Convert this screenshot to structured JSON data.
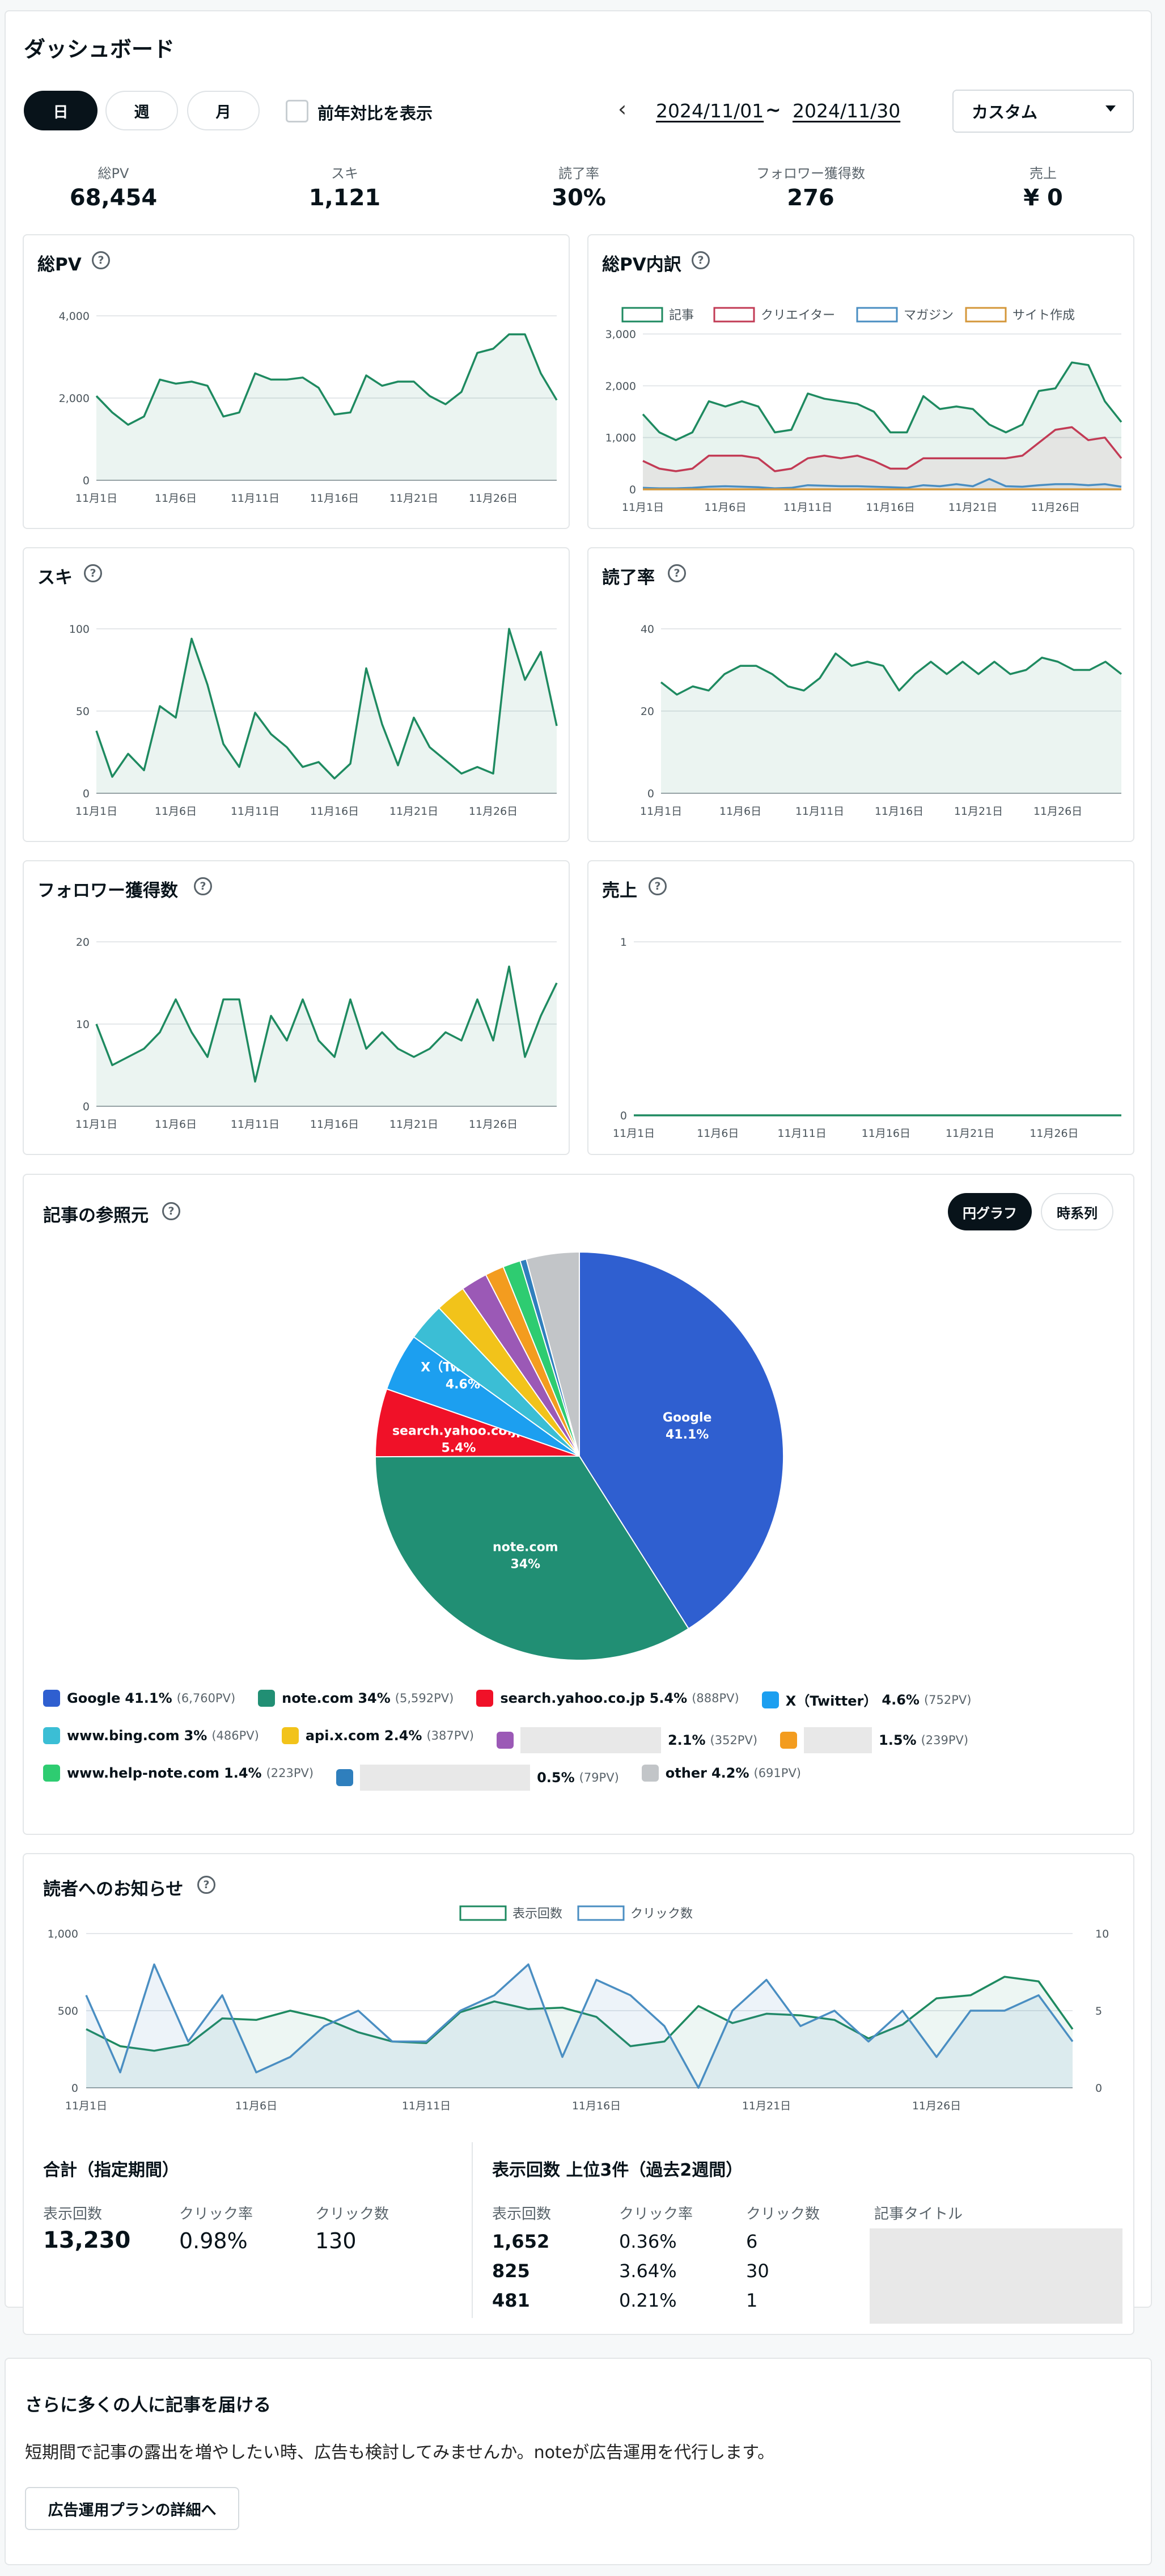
{
  "page": {
    "title": "ダッシュボード"
  },
  "controls": {
    "period_buttons": [
      "日",
      "週",
      "月"
    ],
    "yoy_label": "前年対比を表示",
    "prev_arrow": "‹",
    "date_from": "2024/11/01",
    "date_sep": "~",
    "date_to": "2024/11/30",
    "range_select": "カスタム"
  },
  "kpis": [
    {
      "label": "総PV",
      "value": "68,454"
    },
    {
      "label": "スキ",
      "value": "1,121"
    },
    {
      "label": "読了率",
      "value": "30%"
    },
    {
      "label": "フォロワー獲得数",
      "value": "276"
    },
    {
      "label": "売上",
      "value": "¥ 0"
    }
  ],
  "colors": {
    "green": "#1e8a60",
    "red": "#c23b55",
    "blue": "#4a8ec2",
    "orange": "#d4973a",
    "dark": "#08131a"
  },
  "chart_data": [
    {
      "type": "area",
      "title": "総PV",
      "x": [
        "11月1日",
        "11月2日",
        "11月3日",
        "11月4日",
        "11月5日",
        "11月6日",
        "11月7日",
        "11月8日",
        "11月9日",
        "11月10日",
        "11月11日",
        "11月12日",
        "11月13日",
        "11月14日",
        "11月15日",
        "11月16日",
        "11月17日",
        "11月18日",
        "11月19日",
        "11月20日",
        "11月21日",
        "11月22日",
        "11月23日",
        "11月24日",
        "11月25日",
        "11月26日",
        "11月27日",
        "11月28日",
        "11月29日",
        "11月30日"
      ],
      "xticks": [
        "11月1日",
        "11月6日",
        "11月11日",
        "11月16日",
        "11月21日",
        "11月26日"
      ],
      "yticks": [
        "0",
        "2,000",
        "4,000"
      ],
      "ylim": [
        0,
        4000
      ],
      "series": [
        {
          "values": [
            2050,
            1650,
            1350,
            1550,
            2450,
            2350,
            2400,
            2300,
            1550,
            1650,
            2600,
            2450,
            2450,
            2500,
            2250,
            1600,
            1650,
            2550,
            2300,
            2400,
            2400,
            2050,
            1850,
            2150,
            3100,
            3200,
            3550,
            3550,
            2600,
            1950
          ]
        }
      ]
    },
    {
      "type": "line",
      "title": "総PV内訳",
      "x": [
        "11月1日",
        "11月2日",
        "11月3日",
        "11月4日",
        "11月5日",
        "11月6日",
        "11月7日",
        "11月8日",
        "11月9日",
        "11月10日",
        "11月11日",
        "11月12日",
        "11月13日",
        "11月14日",
        "11月15日",
        "11月16日",
        "11月17日",
        "11月18日",
        "11月19日",
        "11月20日",
        "11月21日",
        "11月22日",
        "11月23日",
        "11月24日",
        "11月25日",
        "11月26日",
        "11月27日",
        "11月28日",
        "11月29日",
        "11月30日"
      ],
      "xticks": [
        "11月1日",
        "11月6日",
        "11月11日",
        "11月16日",
        "11月21日",
        "11月26日"
      ],
      "yticks": [
        "0",
        "1,000",
        "2,000",
        "3,000"
      ],
      "ylim": [
        0,
        3000
      ],
      "series": [
        {
          "name": "記事",
          "values": [
            1450,
            1100,
            950,
            1100,
            1700,
            1600,
            1700,
            1600,
            1100,
            1150,
            1850,
            1750,
            1700,
            1650,
            1500,
            1100,
            1100,
            1800,
            1550,
            1600,
            1550,
            1250,
            1100,
            1250,
            1900,
            1950,
            2450,
            2400,
            1700,
            1300
          ]
        },
        {
          "name": "クリエイター",
          "values": [
            550,
            400,
            350,
            400,
            650,
            650,
            650,
            600,
            350,
            400,
            600,
            650,
            600,
            650,
            550,
            400,
            400,
            600,
            600,
            600,
            600,
            600,
            600,
            650,
            900,
            1150,
            1200,
            950,
            1000,
            600
          ]
        },
        {
          "name": "マガジン",
          "values": [
            30,
            20,
            20,
            30,
            50,
            60,
            50,
            40,
            20,
            30,
            80,
            70,
            60,
            60,
            50,
            40,
            30,
            80,
            60,
            100,
            60,
            200,
            60,
            50,
            80,
            100,
            100,
            80,
            100,
            50
          ]
        },
        {
          "name": "サイト作成",
          "values": [
            0,
            0,
            0,
            0,
            0,
            0,
            0,
            0,
            0,
            0,
            0,
            0,
            0,
            0,
            0,
            0,
            0,
            0,
            0,
            0,
            0,
            0,
            0,
            0,
            0,
            0,
            0,
            0,
            0,
            0
          ]
        }
      ]
    },
    {
      "type": "area",
      "title": "スキ",
      "x": [
        "11月1日",
        "11月2日",
        "11月3日",
        "11月4日",
        "11月5日",
        "11月6日",
        "11月7日",
        "11月8日",
        "11月9日",
        "11月10日",
        "11月11日",
        "11月12日",
        "11月13日",
        "11月14日",
        "11月15日",
        "11月16日",
        "11月17日",
        "11月18日",
        "11月19日",
        "11月20日",
        "11月21日",
        "11月22日",
        "11月23日",
        "11月24日",
        "11月25日",
        "11月26日",
        "11月27日",
        "11月28日",
        "11月29日",
        "11月30日"
      ],
      "xticks": [
        "11月1日",
        "11月6日",
        "11月11日",
        "11月16日",
        "11月21日",
        "11月26日"
      ],
      "yticks": [
        "0",
        "50",
        "100"
      ],
      "ylim": [
        0,
        100
      ],
      "series": [
        {
          "values": [
            38,
            10,
            24,
            14,
            53,
            46,
            94,
            66,
            30,
            16,
            49,
            36,
            28,
            16,
            19,
            9,
            18,
            76,
            42,
            17,
            46,
            28,
            20,
            12,
            16,
            12,
            100,
            69,
            86,
            41
          ]
        }
      ]
    },
    {
      "type": "area",
      "title": "読了率",
      "x": [
        "11月1日",
        "11月2日",
        "11月3日",
        "11月4日",
        "11月5日",
        "11月6日",
        "11月7日",
        "11月8日",
        "11月9日",
        "11月10日",
        "11月11日",
        "11月12日",
        "11月13日",
        "11月14日",
        "11月15日",
        "11月16日",
        "11月17日",
        "11月18日",
        "11月19日",
        "11月20日",
        "11月21日",
        "11月22日",
        "11月23日",
        "11月24日",
        "11月25日",
        "11月26日",
        "11月27日",
        "11月28日",
        "11月29日",
        "11月30日"
      ],
      "xticks": [
        "11月1日",
        "11月6日",
        "11月11日",
        "11月16日",
        "11月21日",
        "11月26日"
      ],
      "yticks": [
        "0",
        "20",
        "40"
      ],
      "ylim": [
        0,
        40
      ],
      "series": [
        {
          "values": [
            27,
            24,
            26,
            25,
            29,
            31,
            31,
            29,
            26,
            25,
            28,
            34,
            31,
            32,
            31,
            25,
            29,
            32,
            29,
            32,
            29,
            32,
            29,
            30,
            33,
            32,
            30,
            30,
            32,
            29
          ]
        }
      ]
    },
    {
      "type": "area",
      "title": "フォロワー獲得数",
      "x": [
        "11月1日",
        "11月2日",
        "11月3日",
        "11月4日",
        "11月5日",
        "11月6日",
        "11月7日",
        "11月8日",
        "11月9日",
        "11月10日",
        "11月11日",
        "11月12日",
        "11月13日",
        "11月14日",
        "11月15日",
        "11月16日",
        "11月17日",
        "11月18日",
        "11月19日",
        "11月20日",
        "11月21日",
        "11月22日",
        "11月23日",
        "11月24日",
        "11月25日",
        "11月26日",
        "11月27日",
        "11月28日",
        "11月29日",
        "11月30日"
      ],
      "xticks": [
        "11月1日",
        "11月6日",
        "11月11日",
        "11月16日",
        "11月21日",
        "11月26日"
      ],
      "yticks": [
        "0",
        "10",
        "20"
      ],
      "ylim": [
        0,
        20
      ],
      "series": [
        {
          "values": [
            10,
            5,
            6,
            7,
            9,
            13,
            9,
            6,
            13,
            13,
            3,
            11,
            8,
            13,
            8,
            6,
            13,
            7,
            9,
            7,
            6,
            7,
            9,
            8,
            13,
            8,
            17,
            6,
            11,
            15
          ]
        }
      ]
    },
    {
      "type": "line",
      "title": "売上",
      "x": [
        "11月1日",
        "11月2日",
        "11月3日",
        "11月4日",
        "11月5日",
        "11月6日",
        "11月7日",
        "11月8日",
        "11月9日",
        "11月10日",
        "11月11日",
        "11月12日",
        "11月13日",
        "11月14日",
        "11月15日",
        "11月16日",
        "11月17日",
        "11月18日",
        "11月19日",
        "11月20日",
        "11月21日",
        "11月22日",
        "11月23日",
        "11月24日",
        "11月25日",
        "11月26日",
        "11月27日",
        "11月28日",
        "11月29日",
        "11月30日"
      ],
      "xticks": [
        "11月1日",
        "11月6日",
        "11月11日",
        "11月16日",
        "11月21日",
        "11月26日"
      ],
      "yticks": [
        "0",
        "1"
      ],
      "ylim": [
        0,
        1
      ],
      "series": [
        {
          "values": [
            0,
            0,
            0,
            0,
            0,
            0,
            0,
            0,
            0,
            0,
            0,
            0,
            0,
            0,
            0,
            0,
            0,
            0,
            0,
            0,
            0,
            0,
            0,
            0,
            0,
            0,
            0,
            0,
            0,
            0
          ]
        }
      ]
    },
    {
      "type": "pie",
      "title": "記事の参照元",
      "slices": [
        {
          "label": "Google",
          "pct": "41.1%",
          "value": 41.1,
          "pv": "(6,760PV)",
          "color": "#2f5fd0",
          "show_label": true,
          "mid": "Google\n41.1%"
        },
        {
          "label": "note.com",
          "pct": "34%",
          "value": 34,
          "pv": "(5,592PV)",
          "color": "#218f74",
          "show_label": true
        },
        {
          "label": "search.yahoo.co.jp",
          "pct": "5.4%",
          "value": 5.4,
          "pv": "(888PV)",
          "color": "#f01128",
          "show_label": true
        },
        {
          "label": "X（Twitter）",
          "pct": "4.6%",
          "value": 4.6,
          "pv": "(752PV)",
          "color": "#1c9ff0",
          "show_label": true
        },
        {
          "label": "www.bing.com",
          "pct": "3%",
          "value": 3,
          "pv": "(486PV)",
          "color": "#3bbed5",
          "show_label": false
        },
        {
          "label": "api.x.com",
          "pct": "2.4%",
          "value": 2.4,
          "pv": "(387PV)",
          "color": "#f2c31a",
          "show_label": false
        },
        {
          "label": "",
          "pct": "2.1%",
          "value": 2.1,
          "pv": "(352PV)",
          "color": "#9b59b6",
          "show_label": false
        },
        {
          "label": "",
          "pct": "1.5%",
          "value": 1.5,
          "pv": "(239PV)",
          "color": "#f39c1f",
          "show_label": false
        },
        {
          "label": "www.help-note.com",
          "pct": "1.4%",
          "value": 1.4,
          "pv": "(223PV)",
          "color": "#2ecc71",
          "show_label": false
        },
        {
          "label": "",
          "pct": "0.5%",
          "value": 0.5,
          "pv": "(79PV)",
          "color": "#2f7fbd",
          "show_label": false
        },
        {
          "label": "other",
          "pct": "4.2%",
          "value": 4.2,
          "pv": "(691PV)",
          "color": "#c2c5c8",
          "show_label": false
        }
      ]
    },
    {
      "type": "line",
      "title": "読者へのお知らせ",
      "x": [
        "11月1日",
        "11月2日",
        "11月3日",
        "11月4日",
        "11月5日",
        "11月6日",
        "11月7日",
        "11月8日",
        "11月9日",
        "11月10日",
        "11月11日",
        "11月12日",
        "11月13日",
        "11月14日",
        "11月15日",
        "11月16日",
        "11月17日",
        "11月18日",
        "11月19日",
        "11月20日",
        "11月21日",
        "11月22日",
        "11月23日",
        "11月24日",
        "11月25日",
        "11月26日",
        "11月27日",
        "11月28日",
        "11月29日",
        "11月30日"
      ],
      "xticks": [
        "11月1日",
        "11月6日",
        "11月11日",
        "11月16日",
        "11月21日",
        "11月26日"
      ],
      "yticks_left": [
        "0",
        "500",
        "1,000"
      ],
      "yticks_right": [
        "0",
        "5",
        "10"
      ],
      "ylim_left": [
        0,
        1000
      ],
      "ylim_right": [
        0,
        10
      ],
      "series": [
        {
          "name": "表示回数",
          "axis": "left",
          "values": [
            380,
            270,
            240,
            280,
            450,
            440,
            500,
            450,
            360,
            300,
            290,
            490,
            560,
            510,
            520,
            460,
            270,
            300,
            530,
            420,
            480,
            470,
            440,
            320,
            410,
            580,
            600,
            720,
            690,
            380
          ]
        },
        {
          "name": "クリック数",
          "axis": "right",
          "values": [
            6,
            1,
            8,
            3,
            6,
            1,
            2,
            4,
            5,
            3,
            3,
            5,
            6,
            8,
            2,
            7,
            6,
            4,
            0,
            5,
            7,
            4,
            5,
            3,
            5,
            2,
            5,
            5,
            6,
            3
          ]
        }
      ]
    }
  ],
  "referrer": {
    "toggle": [
      "円グラフ",
      "時系列"
    ]
  },
  "notice": {
    "summary_title": "合計（指定期間）",
    "summary": [
      {
        "label": "表示回数",
        "value": "13,230"
      },
      {
        "label": "クリック率",
        "value": "0.98%"
      },
      {
        "label": "クリック数",
        "value": "130"
      }
    ],
    "top_title": "表示回数 上位3件（過去2週間）",
    "top_headers": [
      "表示回数",
      "クリック率",
      "クリック数",
      "記事タイトル"
    ],
    "top_rows": [
      {
        "views": "1,652",
        "ctr": "0.36%",
        "clicks": "6"
      },
      {
        "views": "825",
        "ctr": "3.64%",
        "clicks": "30"
      },
      {
        "views": "481",
        "ctr": "0.21%",
        "clicks": "1"
      }
    ]
  },
  "promo": {
    "title": "さらに多くの人に記事を届ける",
    "body": "短期間で記事の露出を増やしたい時、広告も検討してみませんか。noteが広告運用を代行します。",
    "button": "広告運用プランの詳細へ"
  }
}
